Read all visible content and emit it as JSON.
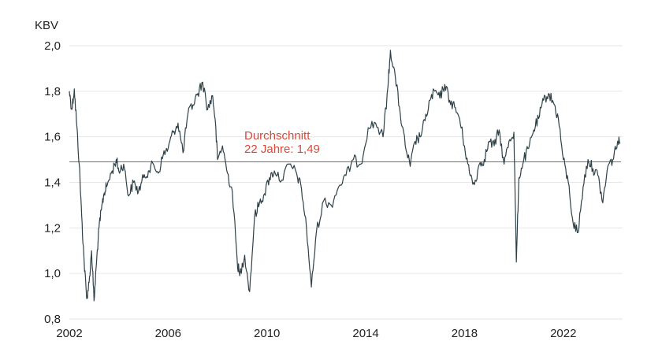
{
  "chart_data": {
    "type": "line",
    "title": "",
    "xlabel": "",
    "ylabel": "KBV",
    "xlim": [
      2002,
      2024.4
    ],
    "ylim": [
      0.8,
      2.0
    ],
    "y_ticks": [
      "2,0",
      "1,8",
      "1,6",
      "1,4",
      "1,2",
      "1,0",
      "0,8"
    ],
    "x_ticks": [
      "2002",
      "2006",
      "2010",
      "2014",
      "2018",
      "2022"
    ],
    "grid": "horizontal",
    "colors": {
      "line": "#2f4148",
      "average": "#d44a3a",
      "grid": "#e6e6e6"
    },
    "average": {
      "value": 1.49,
      "label_line1": "Durchschnitt",
      "label_line2": "22 Jahre: 1,49"
    },
    "series": [
      {
        "x": [
          2002.0,
          2002.1,
          2002.2,
          2002.3,
          2002.4,
          2002.5,
          2002.6,
          2002.7,
          2002.8,
          2002.9,
          2003.0,
          2003.1,
          2003.2,
          2003.3,
          2003.4,
          2003.5,
          2003.7,
          2003.9,
          2004.0,
          2004.2,
          2004.4,
          2004.6,
          2004.8,
          2005.0,
          2005.2,
          2005.4,
          2005.6,
          2005.8,
          2006.0,
          2006.2,
          2006.4,
          2006.6,
          2006.8,
          2007.0,
          2007.2,
          2007.4,
          2007.6,
          2007.8,
          2007.9,
          2008.0,
          2008.2,
          2008.4,
          2008.6,
          2008.8,
          2008.9,
          2009.1,
          2009.3,
          2009.5,
          2009.7,
          2009.9,
          2010.1,
          2010.3,
          2010.6,
          2010.9,
          2011.2,
          2011.4,
          2011.6,
          2011.8,
          2012.0,
          2012.3,
          2012.6,
          2012.9,
          2013.2,
          2013.5,
          2013.8,
          2014.1,
          2014.4,
          2014.7,
          2014.9,
          2015.0,
          2015.2,
          2015.4,
          2015.6,
          2015.8,
          2016.0,
          2016.2,
          2016.4,
          2016.6,
          2016.8,
          2017.0,
          2017.2,
          2017.4,
          2017.6,
          2017.8,
          2018.0,
          2018.2,
          2018.4,
          2018.6,
          2018.8,
          2019.0,
          2019.2,
          2019.4,
          2019.6,
          2019.8,
          2020.0,
          2020.1,
          2020.2,
          2020.4,
          2020.6,
          2020.8,
          2021.0,
          2021.2,
          2021.4,
          2021.6,
          2021.8,
          2022.0,
          2022.2,
          2022.4,
          2022.6,
          2022.8,
          2023.0,
          2023.2,
          2023.4,
          2023.6,
          2023.8,
          2024.0,
          2024.2,
          2024.3
        ],
        "y": [
          1.8,
          1.72,
          1.81,
          1.65,
          1.48,
          1.25,
          1.05,
          0.89,
          0.96,
          1.1,
          0.88,
          1.05,
          1.2,
          1.28,
          1.35,
          1.38,
          1.44,
          1.5,
          1.45,
          1.48,
          1.34,
          1.4,
          1.36,
          1.42,
          1.45,
          1.48,
          1.44,
          1.52,
          1.55,
          1.62,
          1.66,
          1.53,
          1.7,
          1.74,
          1.79,
          1.84,
          1.72,
          1.78,
          1.68,
          1.5,
          1.56,
          1.44,
          1.36,
          1.05,
          0.99,
          1.08,
          0.92,
          1.25,
          1.31,
          1.35,
          1.42,
          1.45,
          1.41,
          1.48,
          1.44,
          1.37,
          1.2,
          0.94,
          1.18,
          1.32,
          1.3,
          1.38,
          1.43,
          1.5,
          1.48,
          1.64,
          1.66,
          1.6,
          1.82,
          1.98,
          1.86,
          1.7,
          1.56,
          1.47,
          1.58,
          1.6,
          1.67,
          1.76,
          1.8,
          1.77,
          1.83,
          1.76,
          1.73,
          1.68,
          1.56,
          1.44,
          1.39,
          1.48,
          1.5,
          1.58,
          1.56,
          1.63,
          1.48,
          1.58,
          1.62,
          1.05,
          1.42,
          1.5,
          1.55,
          1.63,
          1.68,
          1.76,
          1.79,
          1.75,
          1.68,
          1.5,
          1.4,
          1.22,
          1.18,
          1.38,
          1.5,
          1.46,
          1.43,
          1.31,
          1.47,
          1.5,
          1.58,
          1.57
        ]
      }
    ]
  }
}
